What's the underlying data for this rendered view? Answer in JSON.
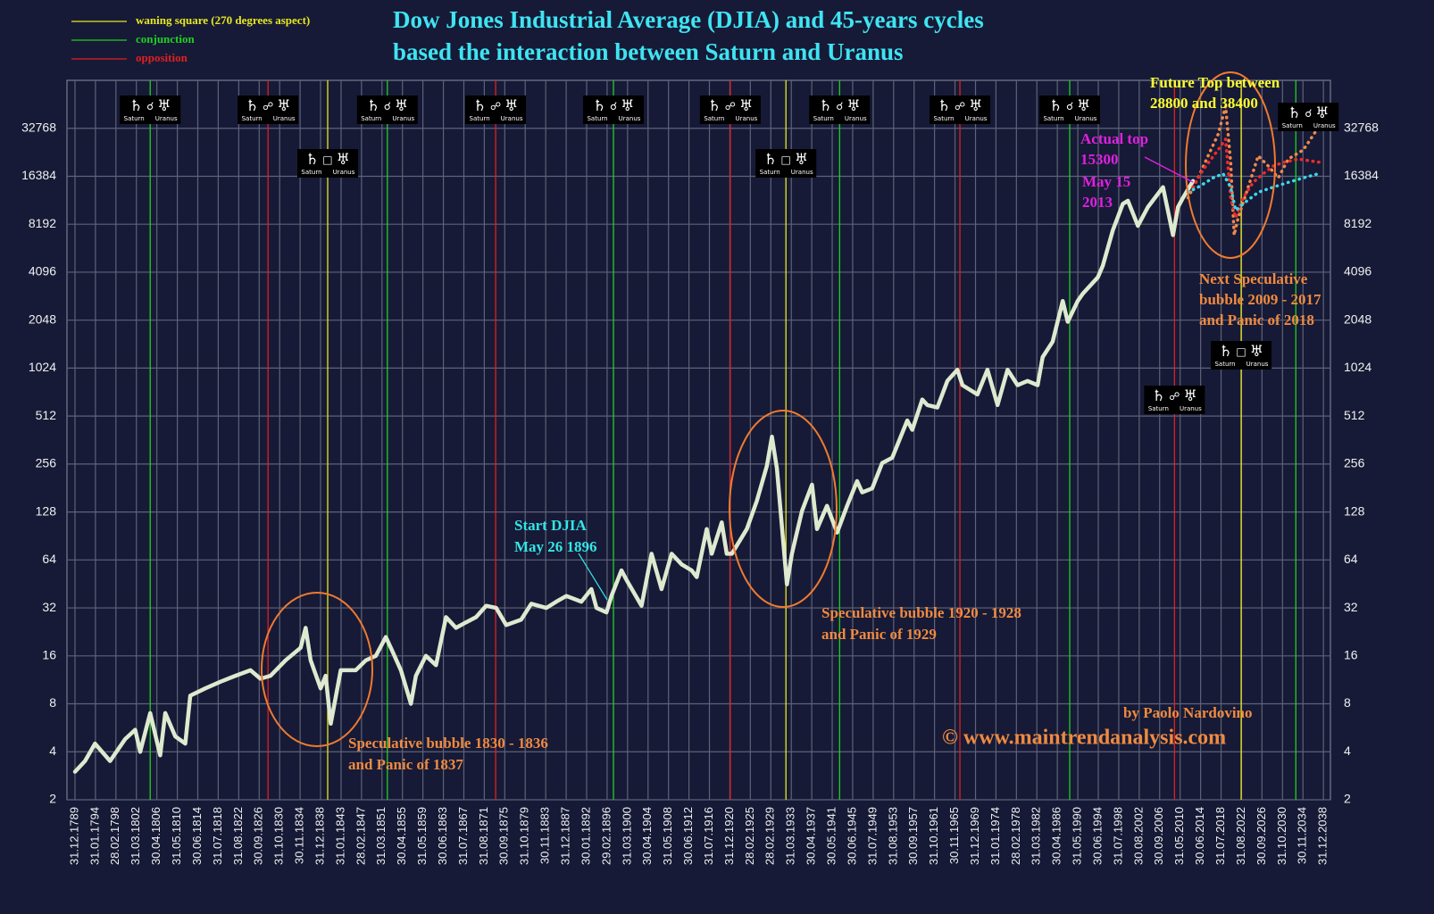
{
  "chart_data": {
    "type": "line",
    "title": [
      "Dow Jones Industrial Average (DJIA) and 45-years cycles",
      "based the interaction between Saturn and Uranus"
    ],
    "yscale": "log",
    "grid": true,
    "legend": "top-left",
    "xlim": [
      1788.4,
      2040.4
    ],
    "ylim": [
      2,
      65536
    ],
    "yticks": [
      2,
      4,
      8,
      16,
      32,
      64,
      128,
      256,
      512,
      1024,
      2048,
      4096,
      8192,
      16384,
      32768
    ],
    "xticks": [
      {
        "value": 1790.0,
        "label": "31.12.1789"
      },
      {
        "value": 1794.08,
        "label": "31.01.1794"
      },
      {
        "value": 1798.16,
        "label": "28.02.1798"
      },
      {
        "value": 1802.25,
        "label": "31.03.1802"
      },
      {
        "value": 1806.33,
        "label": "30.04.1806"
      },
      {
        "value": 1810.41,
        "label": "31.05.1810"
      },
      {
        "value": 1814.49,
        "label": "30.06.1814"
      },
      {
        "value": 1818.57,
        "label": "31.07.1818"
      },
      {
        "value": 1822.66,
        "label": "31.08.1822"
      },
      {
        "value": 1826.74,
        "label": "30.09.1826"
      },
      {
        "value": 1830.82,
        "label": "31.10.1830"
      },
      {
        "value": 1834.9,
        "label": "30.11.1834"
      },
      {
        "value": 1838.98,
        "label": "31.12.1838"
      },
      {
        "value": 1843.07,
        "label": "31.01.1843"
      },
      {
        "value": 1847.15,
        "label": "28.02.1847"
      },
      {
        "value": 1851.23,
        "label": "31.03.1851"
      },
      {
        "value": 1855.31,
        "label": "30.04.1855"
      },
      {
        "value": 1859.39,
        "label": "31.05.1859"
      },
      {
        "value": 1863.48,
        "label": "30.06.1863"
      },
      {
        "value": 1867.56,
        "label": "31.07.1867"
      },
      {
        "value": 1871.64,
        "label": "31.08.1871"
      },
      {
        "value": 1875.72,
        "label": "30.09.1875"
      },
      {
        "value": 1879.8,
        "label": "31.10.1879"
      },
      {
        "value": 1883.89,
        "label": "30.11.1883"
      },
      {
        "value": 1887.97,
        "label": "31.12.1887"
      },
      {
        "value": 1892.05,
        "label": "30.01.1892"
      },
      {
        "value": 1896.13,
        "label": "29.02.1896"
      },
      {
        "value": 1900.21,
        "label": "31.03.1900"
      },
      {
        "value": 1904.3,
        "label": "30.04.1904"
      },
      {
        "value": 1908.38,
        "label": "31.05.1908"
      },
      {
        "value": 1912.46,
        "label": "30.06.1912"
      },
      {
        "value": 1916.54,
        "label": "31.07.1916"
      },
      {
        "value": 1920.62,
        "label": "31.12.1920"
      },
      {
        "value": 1924.7,
        "label": "28.02.1925"
      },
      {
        "value": 1928.79,
        "label": "28.02.1929"
      },
      {
        "value": 1932.87,
        "label": "31.03.1933"
      },
      {
        "value": 1936.95,
        "label": "30.04.1937"
      },
      {
        "value": 1941.03,
        "label": "30.05.1941"
      },
      {
        "value": 1945.11,
        "label": "30.06.1945"
      },
      {
        "value": 1949.2,
        "label": "31.07.1949"
      },
      {
        "value": 1953.28,
        "label": "31.08.1953"
      },
      {
        "value": 1957.36,
        "label": "30.09.1957"
      },
      {
        "value": 1961.44,
        "label": "31.10.1961"
      },
      {
        "value": 1965.52,
        "label": "30.11.1965"
      },
      {
        "value": 1969.61,
        "label": "31.12.1969"
      },
      {
        "value": 1973.69,
        "label": "31.01.1974"
      },
      {
        "value": 1977.77,
        "label": "28.02.1978"
      },
      {
        "value": 1981.85,
        "label": "31.03.1982"
      },
      {
        "value": 1985.93,
        "label": "30.04.1986"
      },
      {
        "value": 1990.02,
        "label": "31.05.1990"
      },
      {
        "value": 1994.1,
        "label": "30.06.1994"
      },
      {
        "value": 1998.18,
        "label": "31.07.1998"
      },
      {
        "value": 2002.26,
        "label": "30.08.2002"
      },
      {
        "value": 2006.34,
        "label": "30.09.2006"
      },
      {
        "value": 2010.43,
        "label": "31.05.2010"
      },
      {
        "value": 2014.51,
        "label": "30.06.2014"
      },
      {
        "value": 2018.59,
        "label": "31.07.2018"
      },
      {
        "value": 2022.67,
        "label": "31.08.2022"
      },
      {
        "value": 2026.75,
        "label": "30.09.2026"
      },
      {
        "value": 2030.84,
        "label": "31.10.2030"
      },
      {
        "value": 2034.92,
        "label": "30.11.2034"
      },
      {
        "value": 2039.0,
        "label": "31.12.2038"
      }
    ],
    "series": [
      {
        "color": "#dfe9cf",
        "style": "solid",
        "x": [
          1790,
          1792,
          1794,
          1797,
          1800,
          1802,
          1803,
          1805,
          1807,
          1808,
          1810,
          1812,
          1813,
          1816,
          1819,
          1822,
          1825,
          1827,
          1829,
          1832,
          1835,
          1836,
          1837,
          1839,
          1840,
          1841,
          1843,
          1846,
          1848,
          1850,
          1852,
          1853,
          1855,
          1857,
          1858,
          1860,
          1862,
          1864,
          1866,
          1868,
          1870,
          1872,
          1874,
          1876,
          1879,
          1881,
          1884,
          1886,
          1888,
          1891,
          1893,
          1894,
          1896,
          1897,
          1899,
          1900,
          1903,
          1905,
          1907,
          1909,
          1911,
          1913,
          1914,
          1916,
          1917,
          1919,
          1920,
          1921,
          1924,
          1926,
          1928,
          1929,
          1930,
          1932,
          1933,
          1935,
          1937,
          1938,
          1940,
          1942,
          1944,
          1946,
          1947,
          1949,
          1951,
          1953,
          1956,
          1957,
          1959,
          1960,
          1962,
          1964,
          1966,
          1967,
          1970,
          1972,
          1974,
          1976,
          1978,
          1980,
          1982,
          1983,
          1985,
          1987,
          1988,
          1990,
          1991,
          1994,
          1995,
          1997,
          1999,
          2000,
          2002,
          2004,
          2007,
          2009,
          2010,
          2011,
          2013
        ],
        "values": [
          3,
          3.5,
          4.5,
          3.5,
          4.8,
          5.5,
          4,
          7,
          3.8,
          7,
          5,
          4.5,
          9,
          10,
          11,
          12,
          13,
          11.5,
          12,
          15,
          18,
          24,
          15,
          10,
          12,
          6,
          13,
          13,
          15,
          16,
          21,
          18,
          13,
          8,
          12,
          16,
          14,
          28,
          24,
          26,
          28,
          33,
          32,
          25,
          27,
          34,
          32,
          35,
          38,
          35,
          42,
          32,
          30,
          38,
          55,
          48,
          33,
          70,
          42,
          70,
          60,
          55,
          50,
          100,
          70,
          110,
          70,
          70,
          100,
          150,
          250,
          380,
          240,
          45,
          70,
          130,
          190,
          100,
          140,
          95,
          140,
          200,
          170,
          180,
          260,
          280,
          480,
          420,
          650,
          600,
          580,
          850,
          1000,
          800,
          700,
          1000,
          600,
          1000,
          800,
          850,
          800,
          1200,
          1500,
          2700,
          2000,
          2700,
          3000,
          3800,
          4500,
          7500,
          11000,
          11500,
          8000,
          10500,
          14000,
          7000,
          10500,
          12000,
          15300
        ]
      },
      {
        "color": "#f0884a",
        "style": "dotted",
        "x": [
          2012,
          2014,
          2016,
          2018,
          2019.5,
          2020.5,
          2021.2,
          2022,
          2024,
          2026,
          2028,
          2030,
          2032,
          2035,
          2038.5
        ],
        "values": [
          12000,
          16000,
          22000,
          30000,
          45000,
          20000,
          7000,
          9000,
          14000,
          22000,
          19000,
          16000,
          21000,
          24000,
          35000
        ]
      },
      {
        "color": "#ee2a2a",
        "style": "dotted",
        "x": [
          2013,
          2015,
          2018,
          2019.5,
          2020.5,
          2021.5,
          2023,
          2025,
          2027,
          2029,
          2031,
          2034,
          2038.5
        ],
        "values": [
          14000,
          18000,
          24000,
          28000,
          12000,
          9000,
          12000,
          15000,
          17000,
          19000,
          20000,
          21000,
          20000
        ]
      },
      {
        "color": "#3ad8e8",
        "style": "dotted",
        "x": [
          2012,
          2014,
          2017,
          2019,
          2020.5,
          2021.5,
          2023,
          2026,
          2029,
          2032,
          2035,
          2038
        ],
        "values": [
          13000,
          14000,
          16000,
          17000,
          14000,
          10000,
          11000,
          13000,
          14000,
          15000,
          16000,
          17000
        ]
      }
    ],
    "aspects": [
      {
        "name": "waning square (270 degrees aspect)",
        "color": "#e8e820",
        "symbol": "□",
        "x": [
          1840.4,
          1931.8,
          2022.6
        ]
      },
      {
        "name": "conjunction",
        "color": "#20d020",
        "symbol": "☌",
        "x": [
          1805.0,
          1852.3,
          1897.4,
          1942.5,
          1988.4,
          2033.5
        ]
      },
      {
        "name": "opposition",
        "color": "#e02020",
        "symbol": "☍",
        "x": [
          1828.5,
          1873.9,
          1920.7,
          1966.5,
          2009.3
        ]
      }
    ],
    "planets": {
      "saturn": "♄",
      "uranus": "♅",
      "saturn_label": "Saturn",
      "uranus_label": "Uranus"
    },
    "annotations": [
      {
        "text": [
          "Start DJIA",
          "May 26 1896"
        ]
      },
      {
        "text": [
          "Speculative bubble 1830 - 1836",
          "and Panic of 1837"
        ]
      },
      {
        "text": [
          "Speculative bubble 1920 - 1928",
          "and Panic of 1929"
        ]
      },
      {
        "text": [
          "Next Speculative",
          "bubble 2009 - 2017",
          "and Panic of 2018"
        ]
      },
      {
        "text": [
          "Future Top between",
          "28800 and 38400"
        ]
      },
      {
        "text": [
          "Actual top",
          "15300",
          "May 15",
          "2013"
        ]
      },
      {
        "text": [
          "by Paolo Nardovino"
        ]
      },
      {
        "text": [
          "© www.maintrendanalysis.com"
        ]
      }
    ]
  }
}
